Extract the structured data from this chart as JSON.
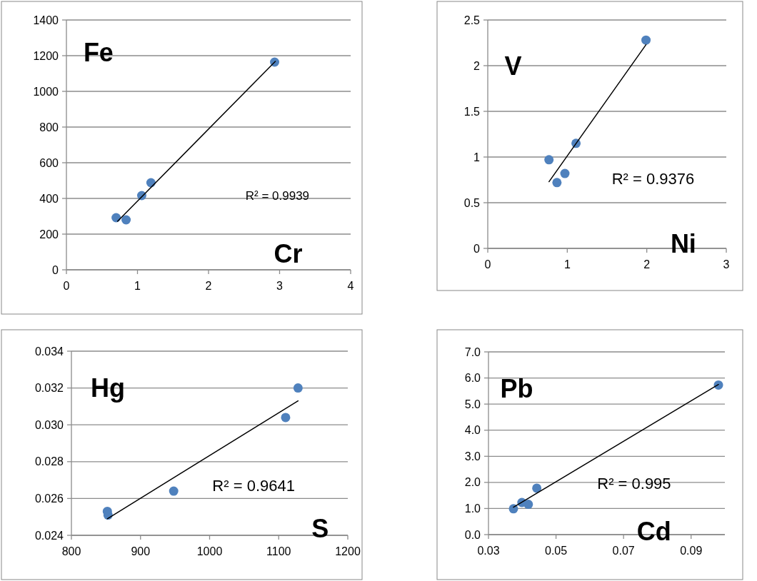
{
  "chart_data": [
    {
      "type": "scatter",
      "xlabel": "Cr",
      "ylabel": "Fe",
      "annotations": [
        "R² = 0.9939"
      ],
      "xlim": [
        0,
        4
      ],
      "xticks": [
        0,
        1,
        2,
        3,
        4
      ],
      "ylim": [
        0,
        1400
      ],
      "yticks": [
        0,
        200,
        400,
        600,
        800,
        1000,
        1200,
        1400
      ],
      "grid": "y",
      "series": [
        {
          "marker": "circle",
          "color": "#4f81bd",
          "x": [
            0.7,
            0.84,
            1.06,
            1.19,
            2.93
          ],
          "values": [
            292,
            280,
            416,
            488,
            1164
          ]
        },
        {
          "type": "line",
          "marker": "none",
          "color": "#000000",
          "x": [
            0.72,
            2.94
          ],
          "values": [
            272,
            1168
          ]
        }
      ]
    },
    {
      "type": "scatter",
      "xlabel": "Ni",
      "ylabel": "V",
      "annotations": [
        "R² = 0.9376"
      ],
      "xlim": [
        0,
        3
      ],
      "xticks": [
        0,
        1,
        2,
        3
      ],
      "ylim": [
        0,
        2.5
      ],
      "yticks": [
        0,
        0.5,
        1,
        1.5,
        2,
        2.5
      ],
      "grid": "y",
      "series": [
        {
          "marker": "circle",
          "color": "#4f81bd",
          "x": [
            0.77,
            0.87,
            0.97,
            1.11,
            1.99
          ],
          "values": [
            0.97,
            0.72,
            0.82,
            1.15,
            2.28
          ]
        },
        {
          "type": "line",
          "marker": "none",
          "color": "#000000",
          "x": [
            0.77,
            1.99
          ],
          "values": [
            0.73,
            2.23
          ]
        }
      ]
    },
    {
      "type": "scatter",
      "xlabel": "S",
      "ylabel": "Hg",
      "annotations": [
        "R² = 0.9641"
      ],
      "xlim": [
        800,
        1200
      ],
      "xticks": [
        800,
        900,
        1000,
        1100,
        1200
      ],
      "ylim": [
        0.024,
        0.034
      ],
      "yticks": [
        {
          "value": 0.024,
          "label": "0.024"
        },
        {
          "value": 0.026,
          "label": "0.026"
        },
        {
          "value": 0.028,
          "label": "0.028"
        },
        {
          "value": 0.03,
          "label": "0.030"
        },
        {
          "value": 0.032,
          "label": "0.032"
        },
        {
          "value": 0.034,
          "label": "0.034"
        }
      ],
      "grid": "y",
      "series": [
        {
          "marker": "circle",
          "color": "#4f81bd",
          "x": [
            852,
            853,
            948,
            1110,
            1128
          ],
          "values": [
            0.0253,
            0.0251,
            0.0264,
            0.0304,
            0.032
          ]
        },
        {
          "type": "line",
          "marker": "none",
          "color": "#000000",
          "x": [
            852,
            1128
          ],
          "values": [
            0.0249,
            0.0313
          ]
        }
      ]
    },
    {
      "type": "scatter",
      "xlabel": "Cd",
      "ylabel": "Pb",
      "annotations": [
        "R² = 0.995"
      ],
      "xlim": [
        0.03,
        0.1
      ],
      "xticks": [
        0.03,
        0.05,
        0.07,
        0.09
      ],
      "ylim": [
        0,
        7
      ],
      "yticks": [
        {
          "value": 0,
          "label": "0.0"
        },
        {
          "value": 1,
          "label": "1.0"
        },
        {
          "value": 2,
          "label": "2.0"
        },
        {
          "value": 3,
          "label": "3.0"
        },
        {
          "value": 4,
          "label": "4.0"
        },
        {
          "value": 5,
          "label": "5.0"
        },
        {
          "value": 6,
          "label": "6.0"
        },
        {
          "value": 7,
          "label": "7.0"
        }
      ],
      "grid": "y",
      "series": [
        {
          "marker": "circle",
          "color": "#4f81bd",
          "x": [
            0.0374,
            0.0399,
            0.0418,
            0.0443,
            0.0981
          ],
          "values": [
            0.99,
            1.23,
            1.16,
            1.78,
            5.73
          ]
        },
        {
          "type": "line",
          "marker": "none",
          "color": "#000000",
          "x": [
            0.0374,
            0.0981
          ],
          "values": [
            1.05,
            5.75
          ]
        }
      ]
    }
  ]
}
